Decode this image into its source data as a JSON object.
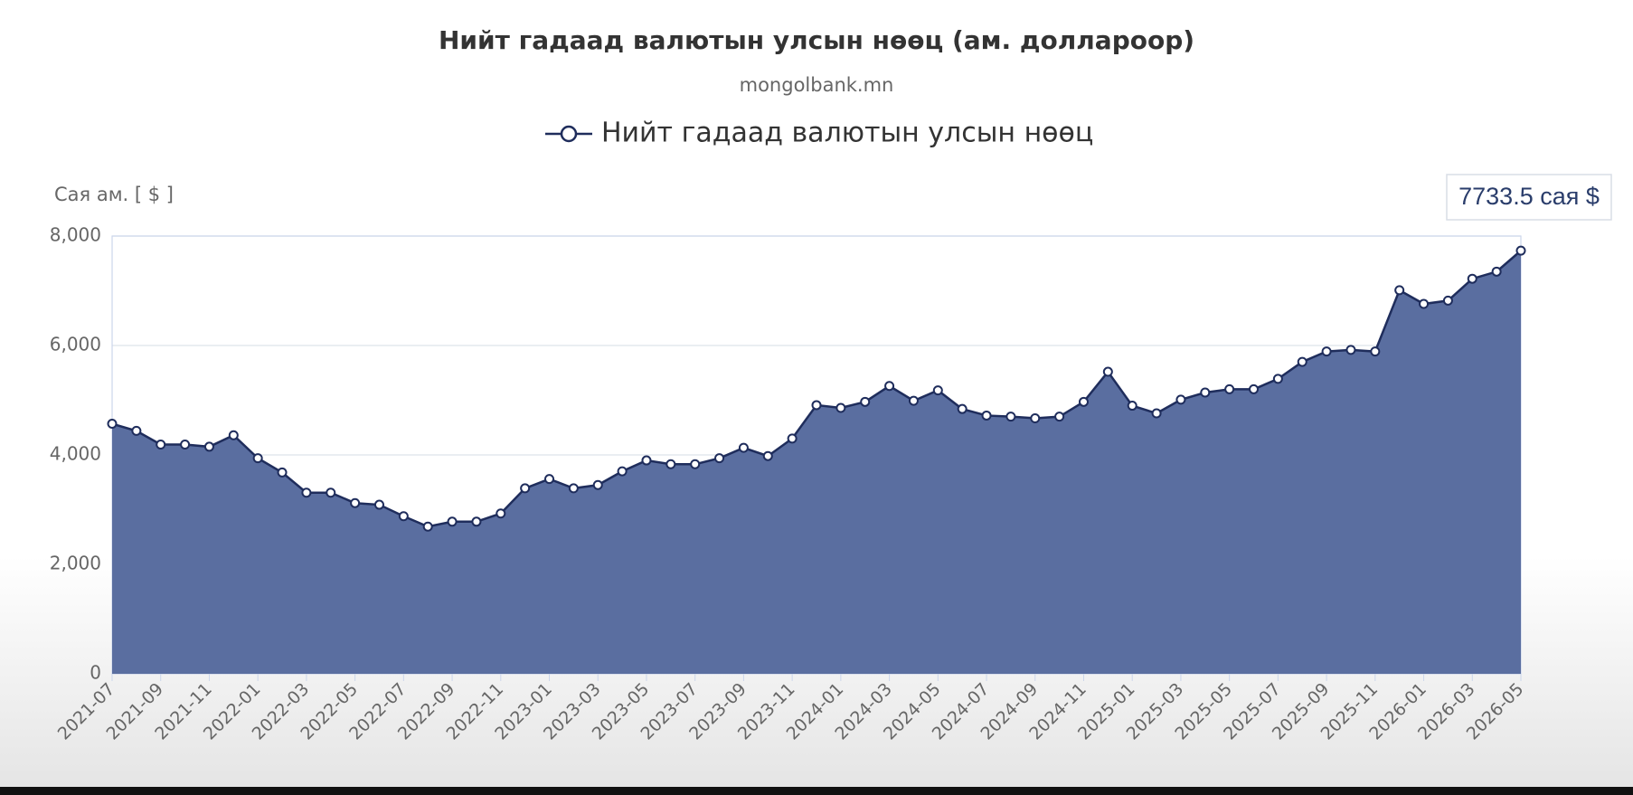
{
  "chart_data": {
    "type": "area",
    "title": "Нийт гадаад валютын улсын нөөц (ам. доллароор)",
    "subtitle": "mongolbank.mn",
    "y_label": "Сая ам. [ $ ]",
    "annotation": "7733.5 сая $",
    "categories": [
      "2021-07",
      null,
      "2021-09",
      null,
      "2021-11",
      null,
      "2022-01",
      null,
      "2022-03",
      null,
      "2022-05",
      null,
      "2022-07",
      null,
      "2022-09",
      null,
      "2022-11",
      null,
      "2023-01",
      null,
      "2023-03",
      null,
      "2023-05",
      null,
      "2023-07",
      null,
      "2023-09",
      null,
      "2023-11",
      null,
      "2024-01",
      null,
      "2024-03",
      null,
      "2024-05",
      null,
      "2024-07",
      null,
      "2024-09",
      null,
      "2024-11",
      null,
      "2025-01",
      null,
      "2025-03",
      null,
      "2025-05",
      null,
      "2025-07",
      null,
      "2025-09",
      null,
      "2025-11",
      null,
      "2026-01",
      null,
      "2026-03",
      null,
      "2026-05"
    ],
    "series": [
      {
        "name": "Нийт гадаад валютын улсын нөөц",
        "color": "#1f2d5c",
        "fill": "#5a6ea0",
        "values": [
          4570,
          4440,
          4190,
          4190,
          4150,
          4360,
          3940,
          3680,
          3310,
          3310,
          3120,
          3090,
          2880,
          2690,
          2780,
          2780,
          2930,
          3390,
          3560,
          3390,
          3450,
          3700,
          3900,
          3830,
          3830,
          3940,
          4130,
          3980,
          4300,
          4910,
          4860,
          4970,
          5260,
          4990,
          5180,
          4840,
          4720,
          4700,
          4670,
          4700,
          4970,
          5520,
          4900,
          4760,
          5010,
          5140,
          5200,
          5200,
          5390,
          5700,
          5890,
          5920,
          5890,
          7010,
          6760,
          6820,
          7220,
          7350,
          7733.5
        ]
      }
    ],
    "ylim": [
      0,
      8000
    ],
    "yticks": [
      0,
      {
        "value": 2000,
        "label": "2,000"
      },
      {
        "value": 4000,
        "label": "4,000"
      },
      {
        "value": 6000,
        "label": "6,000"
      },
      {
        "value": 8000,
        "label": "8,000"
      }
    ],
    "grid": true
  }
}
